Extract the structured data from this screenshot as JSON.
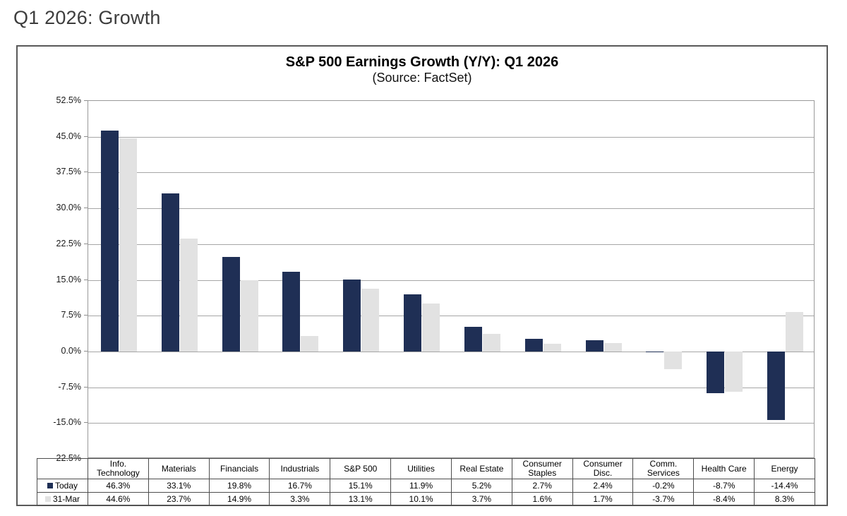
{
  "page": {
    "title": "Q1 2026: Growth"
  },
  "chart_data": {
    "type": "bar",
    "title": "S&P 500 Earnings Growth (Y/Y): Q1 2026",
    "subtitle": "(Source: FactSet)",
    "categories": [
      "Info. Technology",
      "Materials",
      "Financials",
      "Industrials",
      "S&P 500",
      "Utilities",
      "Real Estate",
      "Consumer Staples",
      "Consumer Disc.",
      "Comm. Services",
      "Health Care",
      "Energy"
    ],
    "series": [
      {
        "name": "Today",
        "color": "#1f2f55",
        "values": [
          46.3,
          33.1,
          19.8,
          16.7,
          15.1,
          11.9,
          5.2,
          2.7,
          2.4,
          -0.2,
          -8.7,
          -14.4
        ]
      },
      {
        "name": "31-Mar",
        "color": "#e2e2e2",
        "values": [
          44.6,
          23.7,
          14.9,
          3.3,
          13.1,
          10.1,
          3.7,
          1.6,
          1.7,
          -3.7,
          -8.4,
          8.3
        ]
      }
    ],
    "ylim": [
      -22.5,
      52.5
    ],
    "ytick_step": 7.5,
    "ytick_labels": [
      "52.5%",
      "45.0%",
      "37.5%",
      "30.0%",
      "22.5%",
      "15.0%",
      "7.5%",
      "0.0%",
      "-7.5%",
      "-15.0%",
      "-22.5%"
    ],
    "value_suffix": "%",
    "grid": true,
    "legend_position": "table-left",
    "colors": {
      "grid": "#a6a6a6",
      "plot_border": "#999999",
      "table_border": "#4d4d4d"
    }
  }
}
